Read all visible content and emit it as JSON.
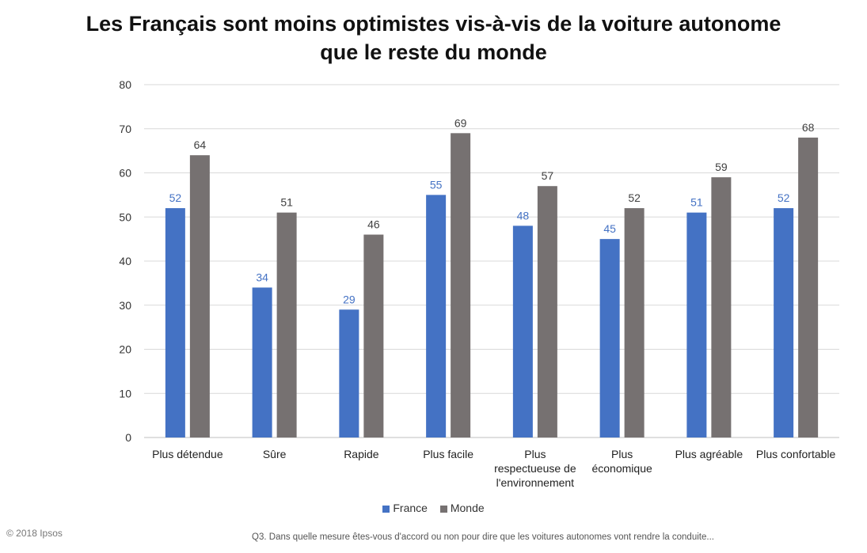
{
  "chart_data": {
    "type": "bar",
    "title_line1": "Les Français sont moins optimistes vis-à-vis de la voiture autonome",
    "title_line2": "que le reste du monde",
    "categories": [
      [
        "Plus détendue"
      ],
      [
        "Sûre"
      ],
      [
        "Rapide"
      ],
      [
        "Plus facile"
      ],
      [
        "Plus",
        "respectueuse de",
        "l'environnement"
      ],
      [
        "Plus",
        "économique"
      ],
      [
        "Plus agréable"
      ],
      [
        "Plus confortable"
      ]
    ],
    "series": [
      {
        "name": "France",
        "color": "#4472C4",
        "values": [
          52,
          34,
          29,
          55,
          48,
          45,
          51,
          52
        ]
      },
      {
        "name": "Monde",
        "color": "#767171",
        "values": [
          64,
          51,
          46,
          69,
          57,
          52,
          59,
          68
        ]
      }
    ],
    "ylim": [
      0,
      80
    ],
    "yticks": [
      0,
      10,
      20,
      30,
      40,
      50,
      60,
      70,
      80
    ],
    "grid": true,
    "legend_position": "bottom",
    "xlabel": "",
    "ylabel": ""
  },
  "footer": {
    "copyright": "© 2018 Ipsos",
    "question": "Q3. Dans quelle mesure êtes-vous d'accord ou non pour dire que les voitures autonomes vont rendre la conduite..."
  }
}
